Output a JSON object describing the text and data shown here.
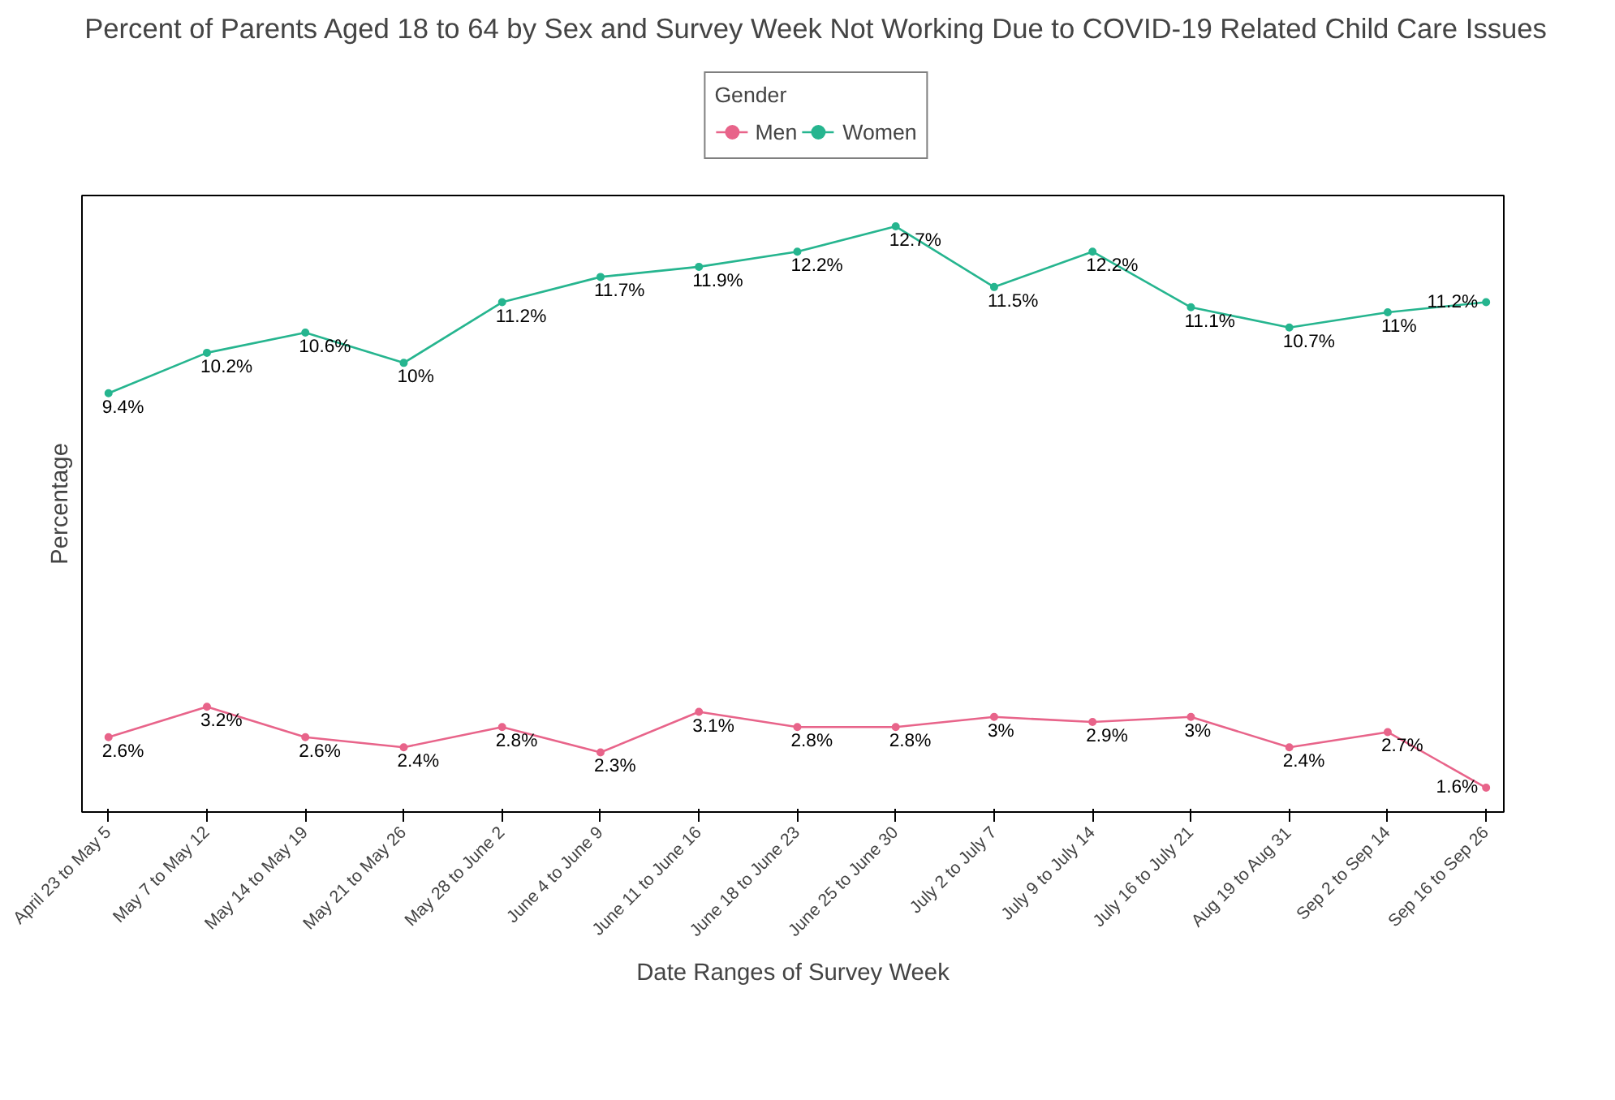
{
  "chart_data": {
    "type": "line",
    "title": "Percent of Parents Aged 18 to 64 by Sex and Survey Week Not Working Due to COVID-19 Related Child Care Issues",
    "xlabel": "Date Ranges of Survey Week",
    "ylabel": "Percentage",
    "legend_title": "Gender",
    "categories": [
      "April 23 to May 5",
      "May 7 to May 12",
      "May 14 to May 19",
      "May 21 to May 26",
      "May 28 to June 2",
      "June 4 to June 9",
      "June 11 to June 16",
      "June 18 to June 23",
      "June 25 to June 30",
      "July 2 to July 7",
      "July 9 to July 14",
      "July 16 to July 21",
      "Aug 19 to Aug 31",
      "Sep 2 to Sep 14",
      "Sep 16 to Sep 26"
    ],
    "series": [
      {
        "name": "Men",
        "color": "#e8648a",
        "values": [
          2.6,
          3.2,
          2.6,
          2.4,
          2.8,
          2.3,
          3.1,
          2.8,
          2.8,
          3,
          2.9,
          3,
          2.4,
          2.7,
          1.6
        ],
        "value_labels": [
          "2.6%",
          "3.2%",
          "2.6%",
          "2.4%",
          "2.8%",
          "2.3%",
          "3.1%",
          "2.8%",
          "2.8%",
          "3%",
          "2.9%",
          "3%",
          "2.4%",
          "2.7%",
          "1.6%"
        ]
      },
      {
        "name": "Women",
        "color": "#26b58f",
        "values": [
          9.4,
          10.2,
          10.6,
          10,
          11.2,
          11.7,
          11.9,
          12.2,
          12.7,
          11.5,
          12.2,
          11.1,
          10.7,
          11,
          11.2
        ],
        "value_labels": [
          "9.4%",
          "10.2%",
          "10.6%",
          "10%",
          "11.2%",
          "11.7%",
          "11.9%",
          "12.2%",
          "12.7%",
          "11.5%",
          "12.2%",
          "11.1%",
          "10.7%",
          "11%",
          "11.2%"
        ]
      }
    ],
    "ylim": [
      1.12,
      13.31
    ],
    "tick_labels": "x",
    "legend": "top",
    "marker": "circle",
    "line_style": "solid",
    "grid": false
  }
}
